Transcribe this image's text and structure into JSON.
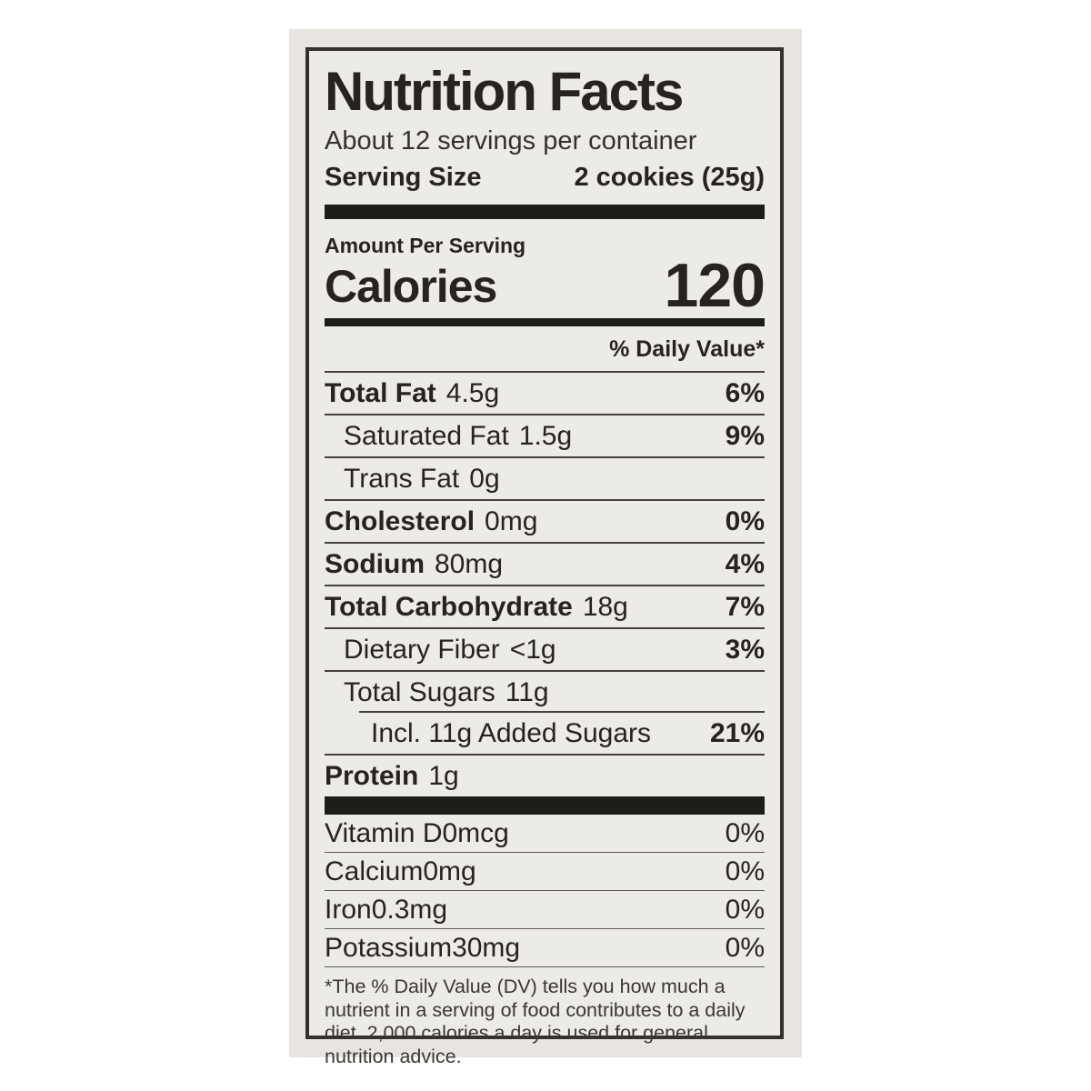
{
  "colors": {
    "package_bg": "#e8e4df",
    "label_bg": "#edebe6",
    "ink": "#262320",
    "bar": "#1f1d1a",
    "rule": "#45423e"
  },
  "label": {
    "title": "Nutrition Facts",
    "servings_per_container": "About 12 servings per container",
    "serving_size_label": "Serving Size",
    "serving_size_value": "2 cookies (25g)",
    "amount_per_serving": "Amount Per Serving",
    "calories_label": "Calories",
    "calories_value": "120",
    "daily_value_header": "% Daily Value*",
    "nutrients": [
      {
        "name": "Total Fat",
        "amount": "4.5g",
        "dv": "6%",
        "bold": true,
        "indent": 0
      },
      {
        "name": "Saturated Fat",
        "amount": "1.5g",
        "dv": "9%",
        "bold": false,
        "indent": 1
      },
      {
        "name": "Trans Fat",
        "amount": "0g",
        "dv": "",
        "bold": false,
        "indent": 1
      },
      {
        "name": "Cholesterol",
        "amount": "0mg",
        "dv": "0%",
        "bold": true,
        "indent": 0
      },
      {
        "name": "Sodium",
        "amount": "80mg",
        "dv": "4%",
        "bold": true,
        "indent": 0
      },
      {
        "name": "Total Carbohydrate",
        "amount": "18g",
        "dv": "7%",
        "bold": true,
        "indent": 0
      },
      {
        "name": "Dietary Fiber",
        "amount": "<1g",
        "dv": "3%",
        "bold": false,
        "indent": 1
      },
      {
        "name": "Total Sugars",
        "amount": "11g",
        "dv": "",
        "bold": false,
        "indent": 1,
        "sep_indent": true
      },
      {
        "name": "Incl. 11g Added Sugars",
        "amount": "",
        "dv": "21%",
        "bold": false,
        "indent": 2
      },
      {
        "name": "Protein",
        "amount": "1g",
        "dv": "",
        "bold": true,
        "indent": 0
      }
    ],
    "micronutrients": [
      {
        "name": "Vitamin D",
        "amount": "0mcg",
        "dv": "0%"
      },
      {
        "name": "Calcium",
        "amount": "0mg",
        "dv": "0%"
      },
      {
        "name": "Iron",
        "amount": "0.3mg",
        "dv": "0%"
      },
      {
        "name": "Potassium",
        "amount": "30mg",
        "dv": "0%"
      }
    ],
    "footnote": "*The % Daily Value (DV) tells you how much a nutrient in a serving of food contributes to a daily diet. 2,000 calories a day is used for general nutrition advice."
  }
}
